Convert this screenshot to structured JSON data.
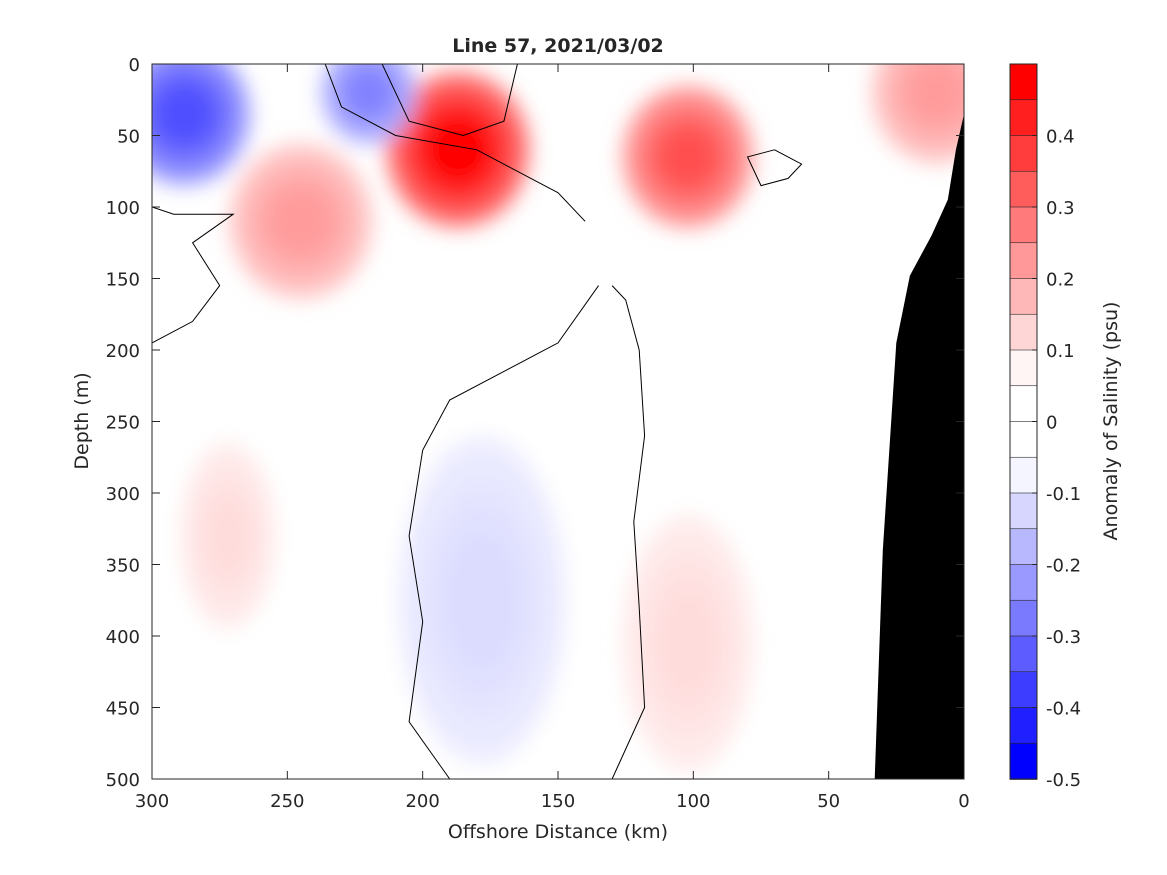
{
  "chart_data": {
    "type": "heatmap",
    "subtype": "filled-contour section",
    "title": "Line 57, 2021/03/02",
    "xlabel": "Offshore Distance (km)",
    "ylabel": "Depth (m)",
    "colorbar_label": "Anomaly of Salinity (psu)",
    "xlim": [
      300,
      0
    ],
    "ylim": [
      0,
      500
    ],
    "y_reversed": true,
    "x_reversed": true,
    "xticks": [
      300,
      250,
      200,
      150,
      100,
      50,
      0
    ],
    "xtick_labels": [
      "300",
      "250",
      "200",
      "150",
      "100",
      "50",
      "0"
    ],
    "yticks": [
      0,
      50,
      100,
      150,
      200,
      250,
      300,
      350,
      400,
      450,
      500
    ],
    "ytick_labels": [
      "0",
      "50",
      "100",
      "150",
      "200",
      "250",
      "300",
      "350",
      "400",
      "450",
      "500"
    ],
    "clim": [
      -0.5,
      0.5
    ],
    "contour_step": 0.05,
    "colorbar_ticks": [
      0.4,
      0.3,
      0.2,
      0.1,
      0,
      -0.1,
      -0.2,
      -0.3,
      -0.4,
      -0.5
    ],
    "colorbar_tick_labels": [
      "0.4",
      "0.3",
      "0.2",
      "0.1",
      "0",
      "-0.1",
      "-0.2",
      "-0.3",
      "-0.4",
      "-0.5"
    ],
    "colorbar_colors": [
      "#ff0000",
      "#ff1f1f",
      "#ff3d3d",
      "#ff5c5c",
      "#ff7a7a",
      "#ff9999",
      "#ffb8b8",
      "#ffd6d6",
      "#fff5f5",
      "#ffffff",
      "#ffffff",
      "#f5f5ff",
      "#d6d6ff",
      "#b8b8ff",
      "#9999ff",
      "#7a7aff",
      "#5c5cff",
      "#3d3dff",
      "#1f1fff",
      "#0000ff"
    ],
    "colormap": "red-white-blue",
    "seafloor_color": "#000000",
    "features": [
      {
        "kind": "max",
        "x": 187,
        "y": 60,
        "value": 0.5
      },
      {
        "kind": "max",
        "x": 102,
        "y": 65,
        "value": 0.35
      },
      {
        "kind": "max",
        "x": 245,
        "y": 110,
        "value": 0.2
      },
      {
        "kind": "max",
        "x": 10,
        "y": 20,
        "value": 0.2
      },
      {
        "kind": "min",
        "x": 288,
        "y": 35,
        "value": -0.35
      },
      {
        "kind": "min",
        "x": 220,
        "y": 20,
        "value": -0.25
      },
      {
        "kind": "min",
        "x": 178,
        "y": 375,
        "value": -0.07
      },
      {
        "kind": "max",
        "x": 102,
        "y": 405,
        "value": 0.07
      },
      {
        "kind": "max",
        "x": 272,
        "y": 330,
        "value": 0.07
      }
    ],
    "seafloor": [
      [
        33,
        500
      ],
      [
        30,
        340
      ],
      [
        25,
        195
      ],
      [
        20,
        148
      ],
      [
        12,
        120
      ],
      [
        6,
        95
      ],
      [
        3,
        60
      ],
      [
        0,
        35
      ]
    ]
  }
}
